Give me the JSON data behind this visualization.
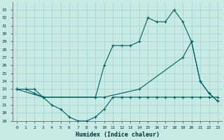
{
  "xlabel": "Humidex (Indice chaleur)",
  "background_color": "#c8eae4",
  "grid_color": "#a0d0cc",
  "line_color": "#006060",
  "xlim": [
    -0.5,
    23.5
  ],
  "ylim": [
    19,
    34
  ],
  "xticks": [
    0,
    1,
    2,
    3,
    4,
    5,
    6,
    7,
    8,
    9,
    10,
    11,
    12,
    13,
    14,
    15,
    16,
    17,
    18,
    19,
    20,
    21,
    22,
    23
  ],
  "yticks": [
    19,
    20,
    21,
    22,
    23,
    24,
    25,
    26,
    27,
    28,
    29,
    30,
    31,
    32,
    33
  ],
  "line1_x": [
    0,
    1,
    2,
    3,
    4,
    5,
    6,
    7,
    8,
    9,
    10,
    11,
    12,
    13,
    14,
    15,
    16,
    17,
    18,
    19,
    20,
    21,
    22,
    23
  ],
  "line1_y": [
    23,
    23,
    22.5,
    22,
    21,
    20.5,
    19.5,
    19,
    19,
    19.5,
    20.5,
    22,
    22,
    22,
    22,
    22,
    22,
    22,
    22,
    22,
    22,
    22,
    22,
    22
  ],
  "line2_x": [
    0,
    1,
    2,
    3,
    9,
    10,
    11,
    12,
    13,
    14,
    15,
    16,
    17,
    18,
    19,
    20,
    21,
    22,
    23
  ],
  "line2_y": [
    23,
    23,
    23,
    22,
    22,
    26,
    28.5,
    28.5,
    28.5,
    29,
    32,
    31.5,
    31.5,
    33,
    31.5,
    29,
    24,
    22.5,
    21.5
  ],
  "line3_x": [
    0,
    3,
    9,
    10,
    14,
    19,
    20,
    21,
    22,
    23
  ],
  "line3_y": [
    23,
    22,
    22,
    22,
    23,
    27,
    29,
    24,
    22.5,
    21.5
  ]
}
